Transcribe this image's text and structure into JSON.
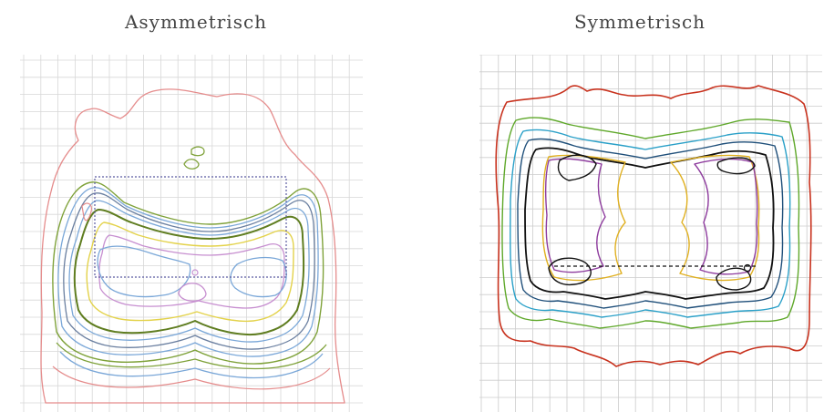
{
  "panels": [
    {
      "title": "Asymmetrisch",
      "grid_color": "#d7d7d7",
      "colors": {
        "outer": "#e58c8c",
        "green": "#7fa23a",
        "dark_green": "#5f7d20",
        "blue": "#7aa7d8",
        "steel": "#6a7fa0",
        "yellow": "#e3d24a",
        "violet": "#c78fd0",
        "marker": "#5a5aa0"
      }
    },
    {
      "title": "Symmetrisch",
      "grid_color": "#cccccc",
      "colors": {
        "outer": "#c8321e",
        "green": "#5fa82a",
        "cyan": "#2aa0c8",
        "navy": "#1f4f7a",
        "black": "#111111",
        "yellow": "#e0b020",
        "purple": "#8e3c9e",
        "dash": "#111111"
      }
    }
  ]
}
